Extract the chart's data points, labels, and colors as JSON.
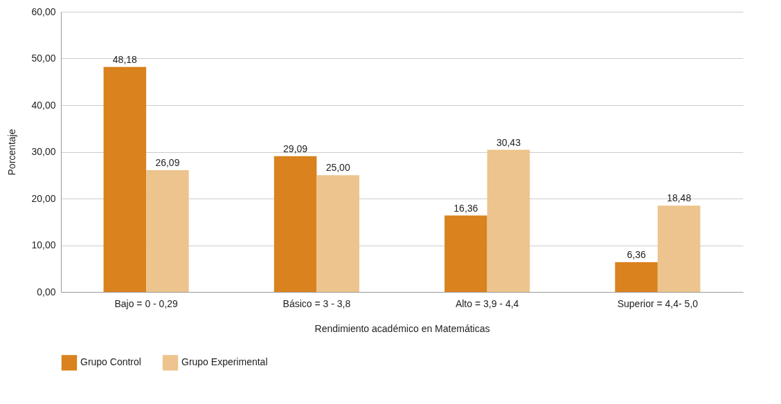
{
  "chart_data": {
    "type": "bar",
    "xlabel": "Rendimiento académico en Matemáticas",
    "ylabel": "Porcentaje",
    "categories": [
      "Bajo = 0 - 0,29",
      "Básico = 3 - 3,8",
      "Alto = 3,9 - 4,4",
      "Superior = 4,4- 5,0"
    ],
    "series": [
      {
        "name": "Grupo Control",
        "color": "#d9821e",
        "values": [
          48.18,
          29.09,
          16.36,
          6.36
        ],
        "value_labels": [
          "48,18",
          "29,09",
          "16,36",
          "6,36"
        ]
      },
      {
        "name": "Grupo Experimental",
        "color": "#edc48d",
        "values": [
          26.09,
          25.0,
          30.43,
          18.48
        ],
        "value_labels": [
          "26,09",
          "25,00",
          "30,43",
          "18,48"
        ]
      }
    ],
    "ylim": [
      0,
      60
    ],
    "yticks": [
      {
        "value": 0,
        "label": "0,00"
      },
      {
        "value": 10,
        "label": "10,00"
      },
      {
        "value": 20,
        "label": "20,00"
      },
      {
        "value": 30,
        "label": "30,00"
      },
      {
        "value": 40,
        "label": "40,00"
      },
      {
        "value": 50,
        "label": "50,00"
      },
      {
        "value": 60,
        "label": "60,00"
      }
    ],
    "grid": "y",
    "legend": "bottom"
  }
}
